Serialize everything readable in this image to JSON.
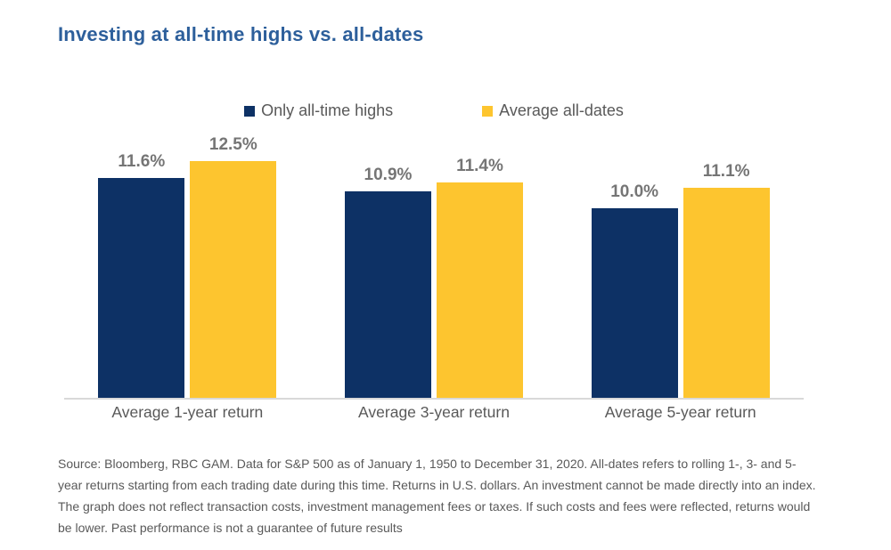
{
  "title": "Investing at all-time highs vs. all-dates",
  "colors": {
    "title_blue": "#2d5f9b",
    "navy_bar": "#0d3165",
    "yellow_bar": "#fdc52f",
    "value_label_gray": "#757575",
    "axis_label_gray": "#595959",
    "baseline_gray": "#d9d9d9"
  },
  "chart_data": {
    "type": "bar",
    "title": "Investing at all-time highs vs. all-dates",
    "categories": [
      "Average 1-year return",
      "Average 3-year return",
      "Average 5-year return"
    ],
    "series": [
      {
        "name": "Only all-time highs",
        "color": "#0d3165",
        "values": [
          11.6,
          10.9,
          10.0
        ]
      },
      {
        "name": "Average all-dates",
        "color": "#fdc52f",
        "values": [
          12.5,
          11.4,
          11.1
        ]
      }
    ],
    "value_labels": [
      [
        "11.6%",
        "12.5%"
      ],
      [
        "10.9%",
        "11.4%"
      ],
      [
        "10.0%",
        "11.1%"
      ]
    ],
    "xlabel": "",
    "ylabel": "",
    "ylim": [
      0,
      13.5
    ],
    "grid": false,
    "legend_position": "top-center",
    "value_unit": "%"
  },
  "source_text": "Source: Bloomberg, RBC GAM. Data for S&P 500 as of January 1, 1950 to December 31, 2020. All-dates refers to rolling 1-, 3- and 5-year returns starting from each trading date during this time. Returns in U.S. dollars. An investment cannot be made directly into an index. The graph does not reflect transaction costs, investment management fees or taxes. If such costs and fees were reflected, returns would be lower. Past performance is not a guarantee of future results"
}
